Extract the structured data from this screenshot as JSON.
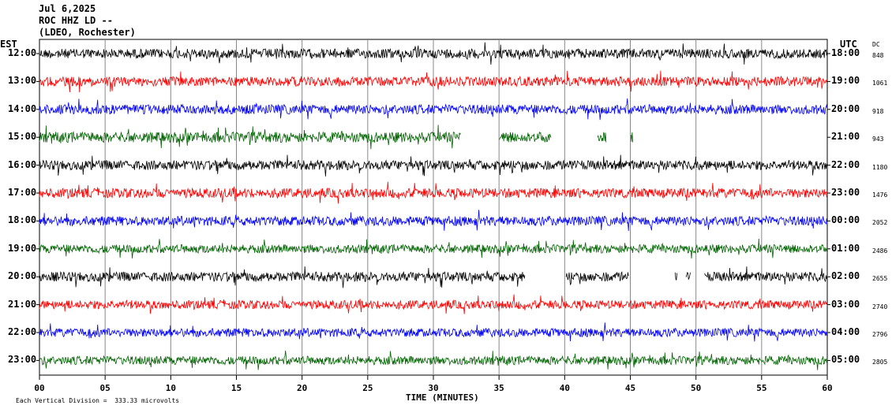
{
  "header": {
    "date": "Jul 6,2025",
    "station": "ROC HHZ LD --",
    "network": "(LDEO, Rochester)"
  },
  "left_axis_title": "EST",
  "right_axis_title": "UTC",
  "dc_title": "DC",
  "footer_note": "Each Vertical Division =  333.33 microvolts",
  "colors": {
    "black": "#000000",
    "red": "#ff0000",
    "blue": "#0000ff",
    "green": "#006400",
    "grid": "#888888"
  },
  "chart_data": {
    "type": "line",
    "title": "",
    "xlabel": "TIME (MINUTES)",
    "ylabel": "",
    "xlim": [
      0,
      60
    ],
    "x_ticks": [
      "00",
      "05",
      "10",
      "15",
      "20",
      "25",
      "30",
      "35",
      "40",
      "45",
      "50",
      "55",
      "60"
    ],
    "grid": "vertical lines every 5 minutes",
    "rows": [
      {
        "est": "12:00",
        "utc": "18:00",
        "dc": "848",
        "color": "black",
        "amplitude": 1.0,
        "gaps": []
      },
      {
        "est": "13:00",
        "utc": "19:00",
        "dc": "1061",
        "color": "red",
        "amplitude": 1.0,
        "gaps": []
      },
      {
        "est": "14:00",
        "utc": "20:00",
        "dc": "918",
        "color": "blue",
        "amplitude": 1.0,
        "gaps": []
      },
      {
        "est": "15:00",
        "utc": "21:00",
        "dc": "943",
        "color": "green",
        "amplitude": 1.1,
        "gaps": [
          [
            32.1,
            35.0
          ],
          [
            39.0,
            42.5
          ],
          [
            43.2,
            45.0
          ],
          [
            45.2,
            60.0
          ]
        ]
      },
      {
        "est": "16:00",
        "utc": "22:00",
        "dc": "1180",
        "color": "black",
        "amplitude": 1.0,
        "gaps": []
      },
      {
        "est": "17:00",
        "utc": "23:00",
        "dc": "1476",
        "color": "red",
        "amplitude": 1.0,
        "gaps": []
      },
      {
        "est": "18:00",
        "utc": "00:00",
        "dc": "2052",
        "color": "blue",
        "amplitude": 1.0,
        "gaps": []
      },
      {
        "est": "19:00",
        "utc": "01:00",
        "dc": "2486",
        "color": "green",
        "amplitude": 0.9,
        "gaps": []
      },
      {
        "est": "20:00",
        "utc": "02:00",
        "dc": "2655",
        "color": "black",
        "amplitude": 1.0,
        "gaps": [
          [
            37.0,
            40.1
          ],
          [
            44.9,
            48.4
          ],
          [
            48.6,
            49.2
          ],
          [
            49.6,
            50.6
          ]
        ]
      },
      {
        "est": "21:00",
        "utc": "03:00",
        "dc": "2740",
        "color": "red",
        "amplitude": 0.9,
        "gaps": []
      },
      {
        "est": "22:00",
        "utc": "04:00",
        "dc": "2796",
        "color": "blue",
        "amplitude": 0.9,
        "gaps": []
      },
      {
        "est": "23:00",
        "utc": "05:00",
        "dc": "2805",
        "color": "green",
        "amplitude": 0.9,
        "gaps": []
      }
    ]
  }
}
